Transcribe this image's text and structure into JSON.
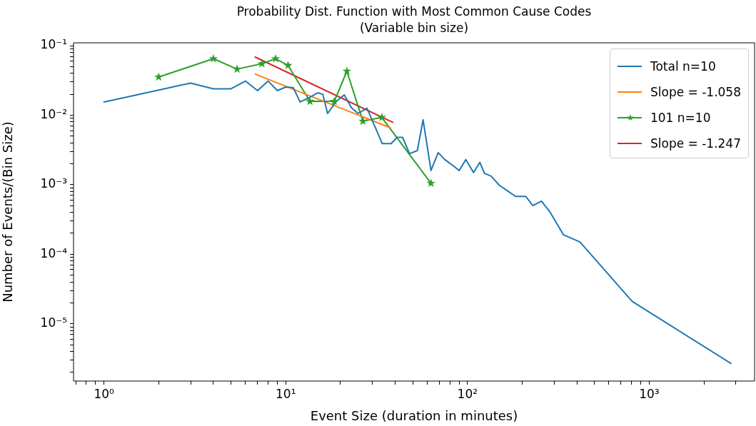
{
  "chart_data": {
    "type": "line",
    "title": "Probability Dist. Function with Most Common Cause Codes",
    "subtitle": "(Variable bin size)",
    "xlabel": "Event Size (duration in minutes)",
    "ylabel": "Number of Events/(Bin Size)",
    "log": "xy",
    "grid": false,
    "legend": "top right",
    "marker": "none",
    "line_style": "solid",
    "xlim": [
      0.68,
      3800
    ],
    "ylim": [
      1.5e-06,
      0.11
    ],
    "xticks": [
      {
        "value": 0.7,
        "label": null
      },
      {
        "value": 0.8,
        "label": null
      },
      {
        "value": 0.9,
        "label": null
      },
      {
        "value": 1,
        "label": "10⁰"
      },
      {
        "value": 2,
        "label": null
      },
      {
        "value": 3,
        "label": null
      },
      {
        "value": 4,
        "label": null
      },
      {
        "value": 5,
        "label": null
      },
      {
        "value": 6,
        "label": null
      },
      {
        "value": 7,
        "label": null
      },
      {
        "value": 8,
        "label": null
      },
      {
        "value": 9,
        "label": null
      },
      {
        "value": 10,
        "label": "10¹"
      },
      {
        "value": 20,
        "label": null
      },
      {
        "value": 30,
        "label": null
      },
      {
        "value": 40,
        "label": null
      },
      {
        "value": 50,
        "label": null
      },
      {
        "value": 60,
        "label": null
      },
      {
        "value": 70,
        "label": null
      },
      {
        "value": 80,
        "label": null
      },
      {
        "value": 90,
        "label": null
      },
      {
        "value": 100,
        "label": "10²"
      },
      {
        "value": 200,
        "label": null
      },
      {
        "value": 300,
        "label": null
      },
      {
        "value": 400,
        "label": null
      },
      {
        "value": 500,
        "label": null
      },
      {
        "value": 600,
        "label": null
      },
      {
        "value": 700,
        "label": null
      },
      {
        "value": 800,
        "label": null
      },
      {
        "value": 900,
        "label": null
      },
      {
        "value": 1000,
        "label": "10³"
      },
      {
        "value": 2000,
        "label": null
      },
      {
        "value": 3000,
        "label": null
      }
    ],
    "yticks": [
      {
        "value": 2e-06,
        "label": null
      },
      {
        "value": 3e-06,
        "label": null
      },
      {
        "value": 4e-06,
        "label": null
      },
      {
        "value": 5e-06,
        "label": null
      },
      {
        "value": 6e-06,
        "label": null
      },
      {
        "value": 7e-06,
        "label": null
      },
      {
        "value": 8e-06,
        "label": null
      },
      {
        "value": 9e-06,
        "label": null
      },
      {
        "value": 1e-05,
        "label": "10⁻⁵"
      },
      {
        "value": 2e-05,
        "label": null
      },
      {
        "value": 3e-05,
        "label": null
      },
      {
        "value": 4e-05,
        "label": null
      },
      {
        "value": 5e-05,
        "label": null
      },
      {
        "value": 6e-05,
        "label": null
      },
      {
        "value": 7e-05,
        "label": null
      },
      {
        "value": 8e-05,
        "label": null
      },
      {
        "value": 9e-05,
        "label": null
      },
      {
        "value": 0.0001,
        "label": "10⁻⁴"
      },
      {
        "value": 0.0002,
        "label": null
      },
      {
        "value": 0.0003,
        "label": null
      },
      {
        "value": 0.0004,
        "label": null
      },
      {
        "value": 0.0005,
        "label": null
      },
      {
        "value": 0.0006,
        "label": null
      },
      {
        "value": 0.0007,
        "label": null
      },
      {
        "value": 0.0008,
        "label": null
      },
      {
        "value": 0.0009,
        "label": null
      },
      {
        "value": 0.001,
        "label": "10⁻³"
      },
      {
        "value": 0.002,
        "label": null
      },
      {
        "value": 0.003,
        "label": null
      },
      {
        "value": 0.004,
        "label": null
      },
      {
        "value": 0.005,
        "label": null
      },
      {
        "value": 0.006,
        "label": null
      },
      {
        "value": 0.007,
        "label": null
      },
      {
        "value": 0.008,
        "label": null
      },
      {
        "value": 0.009,
        "label": null
      },
      {
        "value": 0.01,
        "label": "10⁻²"
      },
      {
        "value": 0.02,
        "label": null
      },
      {
        "value": 0.03,
        "label": null
      },
      {
        "value": 0.04,
        "label": null
      },
      {
        "value": 0.05,
        "label": null
      },
      {
        "value": 0.06,
        "label": null
      },
      {
        "value": 0.07,
        "label": null
      },
      {
        "value": 0.08,
        "label": null
      },
      {
        "value": 0.09,
        "label": null
      },
      {
        "value": 0.1,
        "label": "10⁻¹"
      }
    ],
    "series": [
      {
        "name": "Total n=10",
        "color": "#1f77b4",
        "x": [
          1,
          2,
          3,
          4,
          5,
          6,
          7,
          8,
          9,
          10,
          11,
          12,
          13.5,
          15,
          16,
          17,
          19,
          21,
          23,
          25,
          28,
          34,
          38,
          41,
          44,
          48,
          53,
          57,
          63,
          69,
          75,
          83,
          90,
          98,
          108,
          117,
          124,
          135,
          150,
          167,
          184,
          209,
          229,
          255,
          282,
          338,
          416,
          806,
          2810
        ],
        "values": [
          0.0155,
          0.023,
          0.029,
          0.024,
          0.024,
          0.031,
          0.0226,
          0.031,
          0.0226,
          0.0254,
          0.025,
          0.0155,
          0.018,
          0.021,
          0.02,
          0.0106,
          0.0158,
          0.0196,
          0.0128,
          0.0106,
          0.0126,
          0.0039,
          0.0039,
          0.0048,
          0.0048,
          0.0028,
          0.0031,
          0.0086,
          0.0016,
          0.0029,
          0.0023,
          0.0019,
          0.0016,
          0.0023,
          0.0015,
          0.0021,
          0.00146,
          0.00133,
          0.00098,
          0.00081,
          0.00068,
          0.00068,
          0.0005,
          0.00058,
          0.00042,
          0.00019,
          0.00015,
          2.1e-05,
          2.7e-06
        ]
      },
      {
        "name": "Slope = -1.058",
        "color": "#ff7f0e",
        "x": [
          6.8,
          37.6
        ],
        "values": [
          0.039,
          0.0066
        ]
      },
      {
        "name": "101 n=10",
        "color": "#2ca02c",
        "marker": "star",
        "x": [
          2,
          4,
          5.4,
          7.4,
          8.8,
          10.3,
          13.6,
          18.5,
          21.7,
          26.6,
          33.8,
          63
        ],
        "values": [
          0.0354,
          0.065,
          0.046,
          0.055,
          0.065,
          0.052,
          0.0158,
          0.0158,
          0.043,
          0.0082,
          0.0093,
          0.00105
        ]
      },
      {
        "name": "Slope = -1.247",
        "color": "#d62728",
        "x": [
          6.8,
          38.8
        ],
        "values": [
          0.0686,
          0.0079
        ]
      }
    ]
  }
}
